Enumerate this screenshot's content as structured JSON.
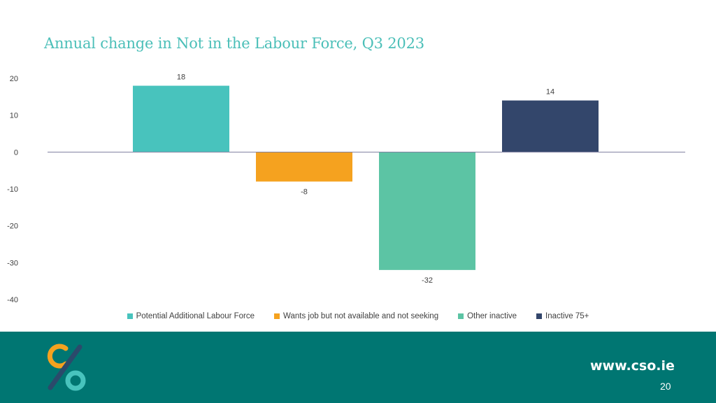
{
  "chart_data": {
    "type": "bar",
    "title": "Annual change in Not in the Labour Force, Q3 2023",
    "categories": [
      "Potential Additional Labour Force",
      "Wants job but not available and not seeking",
      "Other inactive",
      "Inactive 75+"
    ],
    "values": [
      18,
      -8,
      -32,
      14
    ],
    "data_labels": [
      "18",
      "-8",
      "-32",
      "14"
    ],
    "colors": [
      "#48c3bd",
      "#f5a21f",
      "#5cc4a4",
      "#33466b"
    ],
    "ylim": [
      -40,
      20
    ],
    "yticks": [
      20,
      10,
      0,
      -10,
      -20,
      -30,
      -40
    ],
    "xlabel": "",
    "ylabel": "",
    "legend_position": "bottom",
    "grid": false
  },
  "footer": {
    "website": "www.cso.ie",
    "page_number": "20"
  }
}
